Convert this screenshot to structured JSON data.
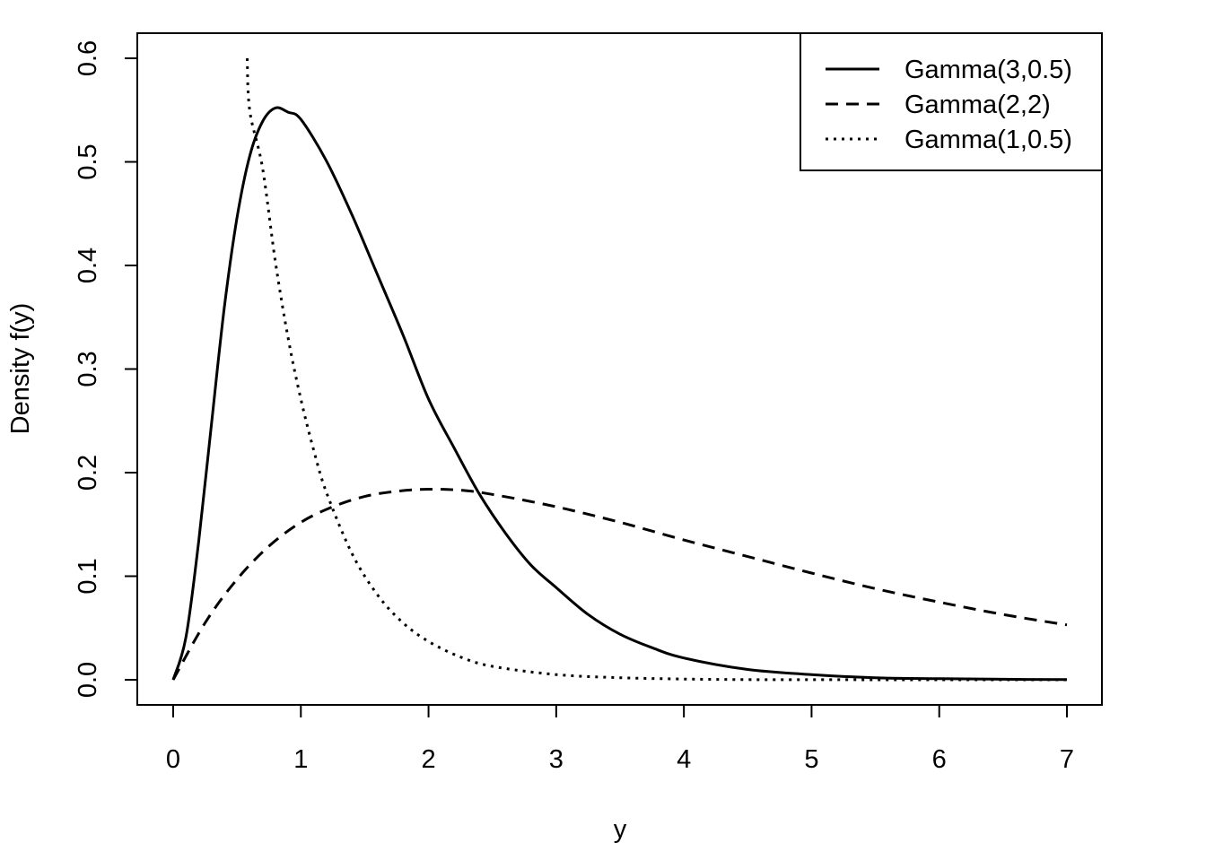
{
  "chart_data": {
    "type": "line",
    "title": "",
    "xlabel": "y",
    "ylabel": "Density f(y)",
    "xlim": [
      0,
      7
    ],
    "ylim": [
      0,
      0.6
    ],
    "xticks": [
      0,
      1,
      2,
      3,
      4,
      5,
      6,
      7
    ],
    "xtick_labels": [
      "0",
      "1",
      "2",
      "3",
      "4",
      "5",
      "6",
      "7"
    ],
    "yticks": [
      0,
      0.1,
      0.2,
      0.3,
      0.4,
      0.5,
      0.6
    ],
    "ytick_labels": [
      "0.0",
      "0.1",
      "0.2",
      "0.3",
      "0.4",
      "0.5",
      "0.6"
    ],
    "grid": false,
    "legend_position": "top-right",
    "series": [
      {
        "name": "Gamma(3,0.5)",
        "line_style": "solid",
        "color": "#000000",
        "x": [
          0,
          0.1,
          0.2,
          0.3,
          0.4,
          0.5,
          0.6,
          0.7,
          0.8,
          0.9,
          1.0,
          1.2,
          1.4,
          1.6,
          1.8,
          2.0,
          2.2,
          2.4,
          2.6,
          2.8,
          3.0,
          3.25,
          3.5,
          3.75,
          4.0,
          4.5,
          5.0,
          5.5,
          6.0,
          6.5,
          7.0
        ],
        "y": [
          0,
          0.041,
          0.134,
          0.247,
          0.359,
          0.446,
          0.506,
          0.539,
          0.552,
          0.548,
          0.541,
          0.501,
          0.449,
          0.391,
          0.333,
          0.271,
          0.224,
          0.179,
          0.142,
          0.111,
          0.089,
          0.063,
          0.044,
          0.031,
          0.021,
          0.01,
          0.005,
          0.002,
          0.001,
          0.0005,
          0.0002
        ]
      },
      {
        "name": "Gamma(2,2)",
        "line_style": "dashed",
        "color": "#000000",
        "x": [
          0,
          0.25,
          0.5,
          0.75,
          1.0,
          1.25,
          1.5,
          1.75,
          2.0,
          2.25,
          2.5,
          3.0,
          3.5,
          4.0,
          4.5,
          5.0,
          5.5,
          6.0,
          6.5,
          7.0
        ],
        "y": [
          0,
          0.055,
          0.097,
          0.129,
          0.152,
          0.167,
          0.177,
          0.182,
          0.184,
          0.183,
          0.179,
          0.167,
          0.152,
          0.135,
          0.119,
          0.103,
          0.088,
          0.075,
          0.063,
          0.053
        ]
      },
      {
        "name": "Gamma(1,0.5)",
        "line_style": "dotted",
        "color": "#000000",
        "x": [
          0.58,
          0.6,
          0.7,
          0.8,
          0.9,
          1.0,
          1.1,
          1.2,
          1.4,
          1.6,
          1.8,
          2.0,
          2.25,
          2.5,
          3.0,
          3.5,
          4.0,
          4.5,
          5.0,
          6.0,
          7.0
        ],
        "y": [
          0.6,
          0.549,
          0.494,
          0.404,
          0.33,
          0.271,
          0.222,
          0.181,
          0.122,
          0.082,
          0.055,
          0.037,
          0.022,
          0.013,
          0.005,
          0.002,
          0.0007,
          0.0002,
          0.0001,
          1e-05,
          0.0
        ]
      }
    ]
  }
}
